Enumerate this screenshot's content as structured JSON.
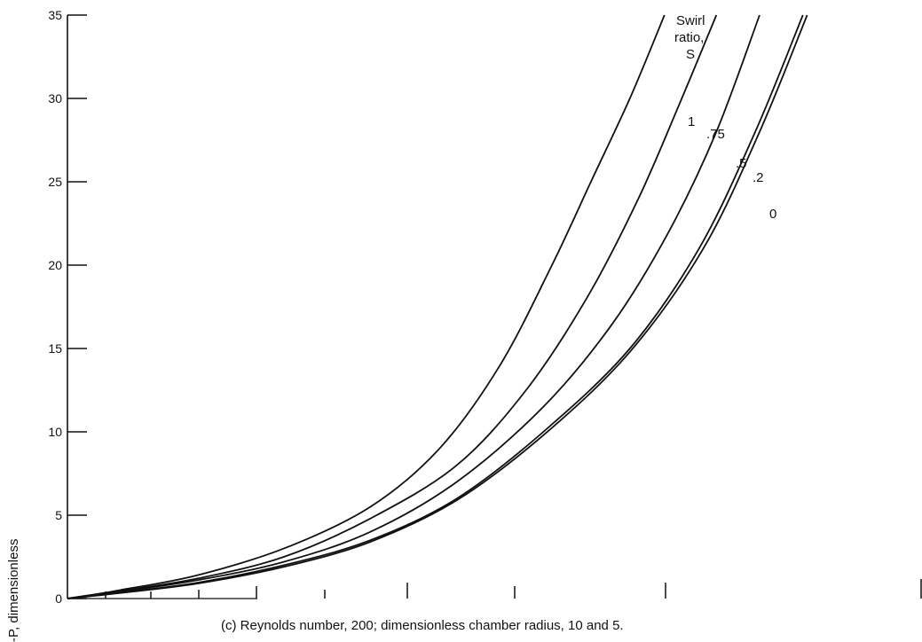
{
  "chart_data": {
    "type": "line",
    "caption": "(c) Reynolds number, 200; dimensionless chamber radius, 10 and 5.",
    "ylabel": "-P, dimensionless",
    "ylim": [
      0,
      35
    ],
    "yticks": [
      0,
      5,
      10,
      15,
      20,
      25,
      30,
      35
    ],
    "legend_title": [
      "Swirl",
      "ratio,",
      "S"
    ],
    "series": [
      {
        "name": "1",
        "points": [
          [
            0,
            0
          ],
          [
            0.6,
            0.5
          ],
          [
            1.5,
            1.4
          ],
          [
            2.5,
            3.0
          ],
          [
            3.5,
            5.5
          ],
          [
            4.3,
            9.0
          ],
          [
            5.0,
            14.0
          ],
          [
            5.6,
            20.0
          ],
          [
            6.05,
            25.0
          ],
          [
            6.5,
            30.0
          ],
          [
            6.9,
            35.0
          ]
        ]
      },
      {
        "name": ".75",
        "points": [
          [
            0,
            0
          ],
          [
            0.6,
            0.45
          ],
          [
            1.5,
            1.2
          ],
          [
            2.5,
            2.5
          ],
          [
            3.5,
            4.8
          ],
          [
            4.5,
            8.0
          ],
          [
            5.3,
            12.5
          ],
          [
            6.0,
            18.0
          ],
          [
            6.6,
            24.0
          ],
          [
            7.1,
            30.0
          ],
          [
            7.5,
            35.0
          ]
        ]
      },
      {
        "name": ".5",
        "points": [
          [
            0,
            0
          ],
          [
            0.6,
            0.4
          ],
          [
            1.5,
            1.1
          ],
          [
            2.5,
            2.2
          ],
          [
            3.5,
            4.0
          ],
          [
            4.5,
            7.0
          ],
          [
            5.5,
            11.5
          ],
          [
            6.3,
            16.5
          ],
          [
            6.95,
            22.0
          ],
          [
            7.5,
            28.0
          ],
          [
            8.0,
            35.0
          ]
        ]
      },
      {
        "name": ".2",
        "points": [
          [
            0,
            0
          ],
          [
            0.6,
            0.35
          ],
          [
            1.5,
            0.95
          ],
          [
            2.5,
            2.0
          ],
          [
            3.5,
            3.5
          ],
          [
            4.5,
            6.0
          ],
          [
            5.5,
            10.0
          ],
          [
            6.5,
            15.0
          ],
          [
            7.3,
            21.0
          ],
          [
            7.95,
            28.0
          ],
          [
            8.5,
            35.0
          ]
        ]
      },
      {
        "name": "0",
        "points": [
          [
            0,
            0
          ],
          [
            0.6,
            0.33
          ],
          [
            1.5,
            0.9
          ],
          [
            2.5,
            1.9
          ],
          [
            3.5,
            3.4
          ],
          [
            4.5,
            5.9
          ],
          [
            5.5,
            9.8
          ],
          [
            6.5,
            14.8
          ],
          [
            7.35,
            21.0
          ],
          [
            8.0,
            28.0
          ],
          [
            8.55,
            35.0
          ]
        ]
      }
    ],
    "colors": {
      "line": "#111111",
      "background": "#ffffff"
    }
  }
}
